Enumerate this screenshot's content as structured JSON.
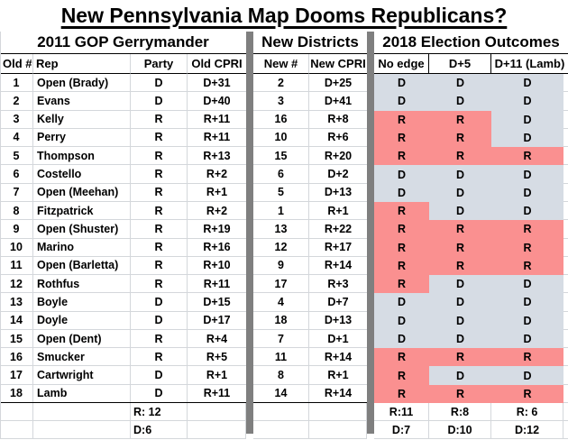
{
  "title": "New Pennsylvania Map Dooms Republicans?",
  "sections": {
    "left": "2011 GOP Gerrymander",
    "middle": "New Districts",
    "right": "2018 Election Outcomes"
  },
  "columns": {
    "old_num": "Old #",
    "rep": "Rep",
    "party": "Party",
    "old_cpri": "Old CPRI",
    "new_num": "New #",
    "new_cpri": "New CPRI",
    "no_edge": "No edge",
    "d5": "D+5",
    "d11": "D+11 (Lamb)"
  },
  "rows": [
    {
      "old_num": "1",
      "rep": "Open (Brady)",
      "party": "D",
      "old_cpri": "D+31",
      "new_num": "2",
      "new_cpri": "D+25",
      "no_edge": "D",
      "d5": "D",
      "d11": "D"
    },
    {
      "old_num": "2",
      "rep": "Evans",
      "party": "D",
      "old_cpri": "D+40",
      "new_num": "3",
      "new_cpri": "D+41",
      "no_edge": "D",
      "d5": "D",
      "d11": "D"
    },
    {
      "old_num": "3",
      "rep": "Kelly",
      "party": "R",
      "old_cpri": "R+11",
      "new_num": "16",
      "new_cpri": "R+8",
      "no_edge": "R",
      "d5": "R",
      "d11": "D"
    },
    {
      "old_num": "4",
      "rep": "Perry",
      "party": "R",
      "old_cpri": "R+11",
      "new_num": "10",
      "new_cpri": "R+6",
      "no_edge": "R",
      "d5": "R",
      "d11": "D"
    },
    {
      "old_num": "5",
      "rep": "Thompson",
      "party": "R",
      "old_cpri": "R+13",
      "new_num": "15",
      "new_cpri": "R+20",
      "no_edge": "R",
      "d5": "R",
      "d11": "R"
    },
    {
      "old_num": "6",
      "rep": "Costello",
      "party": "R",
      "old_cpri": "R+2",
      "new_num": "6",
      "new_cpri": "D+2",
      "no_edge": "D",
      "d5": "D",
      "d11": "D"
    },
    {
      "old_num": "7",
      "rep": "Open (Meehan)",
      "party": "R",
      "old_cpri": "R+1",
      "new_num": "5",
      "new_cpri": "D+13",
      "no_edge": "D",
      "d5": "D",
      "d11": "D"
    },
    {
      "old_num": "8",
      "rep": "Fitzpatrick",
      "party": "R",
      "old_cpri": "R+2",
      "new_num": "1",
      "new_cpri": "R+1",
      "no_edge": "R",
      "d5": "D",
      "d11": "D"
    },
    {
      "old_num": "9",
      "rep": "Open (Shuster)",
      "party": "R",
      "old_cpri": "R+19",
      "new_num": "13",
      "new_cpri": "R+22",
      "no_edge": "R",
      "d5": "R",
      "d11": "R"
    },
    {
      "old_num": "10",
      "rep": "Marino",
      "party": "R",
      "old_cpri": "R+16",
      "new_num": "12",
      "new_cpri": "R+17",
      "no_edge": "R",
      "d5": "R",
      "d11": "R"
    },
    {
      "old_num": "11",
      "rep": "Open (Barletta)",
      "party": "R",
      "old_cpri": "R+10",
      "new_num": "9",
      "new_cpri": "R+14",
      "no_edge": "R",
      "d5": "R",
      "d11": "R"
    },
    {
      "old_num": "12",
      "rep": "Rothfus",
      "party": "R",
      "old_cpri": "R+11",
      "new_num": "17",
      "new_cpri": "R+3",
      "no_edge": "R",
      "d5": "D",
      "d11": "D"
    },
    {
      "old_num": "13",
      "rep": "Boyle",
      "party": "D",
      "old_cpri": "D+15",
      "new_num": "4",
      "new_cpri": "D+7",
      "no_edge": "D",
      "d5": "D",
      "d11": "D"
    },
    {
      "old_num": "14",
      "rep": "Doyle",
      "party": "D",
      "old_cpri": "D+17",
      "new_num": "18",
      "new_cpri": "D+13",
      "no_edge": "D",
      "d5": "D",
      "d11": "D"
    },
    {
      "old_num": "15",
      "rep": "Open (Dent)",
      "party": "R",
      "old_cpri": "R+4",
      "new_num": "7",
      "new_cpri": "D+1",
      "no_edge": "D",
      "d5": "D",
      "d11": "D"
    },
    {
      "old_num": "16",
      "rep": "Smucker",
      "party": "R",
      "old_cpri": "R+5",
      "new_num": "11",
      "new_cpri": "R+14",
      "no_edge": "R",
      "d5": "R",
      "d11": "R"
    },
    {
      "old_num": "17",
      "rep": "Cartwright",
      "party": "D",
      "old_cpri": "R+1",
      "new_num": "8",
      "new_cpri": "R+1",
      "no_edge": "R",
      "d5": "D",
      "d11": "D"
    },
    {
      "old_num": "18",
      "rep": "Lamb",
      "party": "D",
      "old_cpri": "R+11",
      "new_num": "14",
      "new_cpri": "R+14",
      "no_edge": "R",
      "d5": "R",
      "d11": "R"
    }
  ],
  "summary": {
    "party_r": "R: 12",
    "party_d": "D:6",
    "no_edge_r": "R:11",
    "d5_r": "R:8",
    "d11_r": "R: 6",
    "no_edge_d": "D:7",
    "d5_d": "D:10",
    "d11_d": "D:12"
  },
  "colors": {
    "r_fill": "#FA9090",
    "d_fill": "#D6DCE4",
    "separator": "#7F7F7F",
    "grid_light": "#D4D7DB",
    "border": "#000000"
  }
}
